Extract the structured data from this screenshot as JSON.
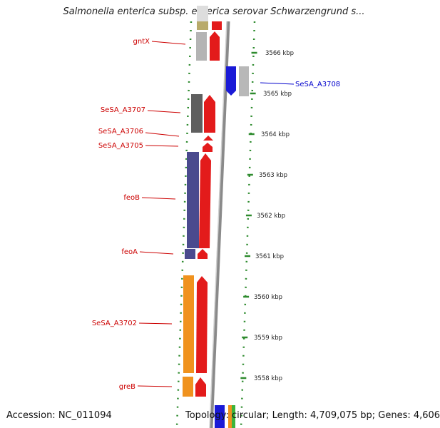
{
  "title": "Salmonella enterica subsp. enterica serovar Schwarzengrund s...",
  "footer": {
    "accession": "Accession: NC_011094",
    "summary": "Topology: circular; Length: 4,709,075 bp; Genes: 4,606"
  },
  "colors": {
    "tick_green": "#2e8b2e",
    "label_red": "#cc0000",
    "label_blue": "#0000cc",
    "backbone_gray": "#8a8a8a"
  },
  "ticks": [
    {
      "label": "3566 kbp",
      "kbp": 3566
    },
    {
      "label": "3565 kbp",
      "kbp": 3565
    },
    {
      "label": "3564 kbp",
      "kbp": 3564
    },
    {
      "label": "3563 kbp",
      "kbp": 3563
    },
    {
      "label": "3562 kbp",
      "kbp": 3562
    },
    {
      "label": "3561 kbp",
      "kbp": 3561
    },
    {
      "label": "3560 kbp",
      "kbp": 3560
    },
    {
      "label": "3559 kbp",
      "kbp": 3559
    },
    {
      "label": "3558 kbp",
      "kbp": 3558
    }
  ],
  "gene_labels": [
    {
      "name": "gntX",
      "color": "label_red"
    },
    {
      "name": "SeSA_A3708",
      "color": "label_blue"
    },
    {
      "name": "SeSA_A3707",
      "color": "label_red"
    },
    {
      "name": "SeSA_A3706",
      "color": "label_red"
    },
    {
      "name": "SeSA_A3705",
      "color": "label_red"
    },
    {
      "name": "feoB",
      "color": "label_red"
    },
    {
      "name": "feoA",
      "color": "label_red"
    },
    {
      "name": "SeSA_A3702",
      "color": "label_red"
    },
    {
      "name": "greB",
      "color": "label_red"
    }
  ]
}
